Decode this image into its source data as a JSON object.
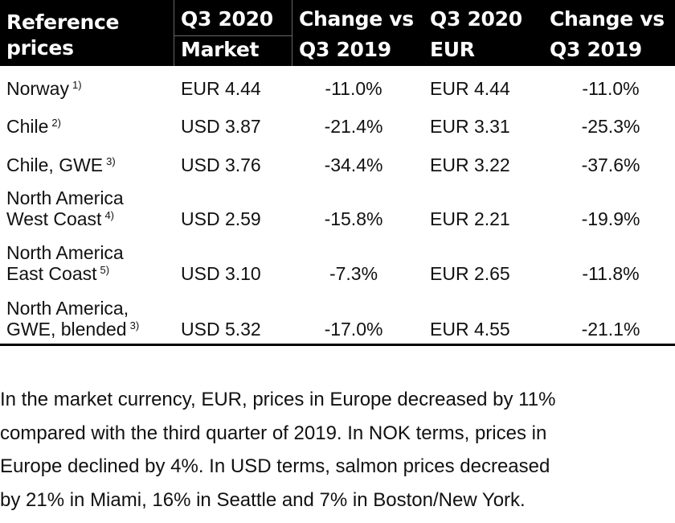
{
  "table": {
    "headers": [
      {
        "line1": "Reference",
        "line2": "prices"
      },
      {
        "line1": "Q3 2020",
        "line2": "Market"
      },
      {
        "line1": "Change vs",
        "line2": "Q3 2019"
      },
      {
        "line1": "Q3 2020",
        "line2": "EUR"
      },
      {
        "line1": "Change vs",
        "line2": "Q3 2019"
      }
    ],
    "rows": [
      {
        "label1": "Norway",
        "label2": "",
        "note": "1)",
        "market": "EUR 4.44",
        "change_market": "-11.0%",
        "eur": "EUR 4.44",
        "change_eur": "-11.0%"
      },
      {
        "label1": "Chile",
        "label2": "",
        "note": "2)",
        "market": "USD 3.87",
        "change_market": "-21.4%",
        "eur": "EUR 3.31",
        "change_eur": "-25.3%"
      },
      {
        "label1": "Chile, GWE",
        "label2": "",
        "note": "3)",
        "market": "USD 3.76",
        "change_market": "-34.4%",
        "eur": "EUR 3.22",
        "change_eur": "-37.6%"
      },
      {
        "label1": "North America",
        "label2": "West Coast",
        "note": "4)",
        "market": "USD 2.59",
        "change_market": "-15.8%",
        "eur": "EUR 2.21",
        "change_eur": "-19.9%"
      },
      {
        "label1": "North America",
        "label2": "East Coast",
        "note": "5)",
        "market": "USD 3.10",
        "change_market": "-7.3%",
        "eur": "EUR 2.65",
        "change_eur": "-11.8%"
      },
      {
        "label1": "North America,",
        "label2": "GWE, blended",
        "note": "3)",
        "market": "USD 5.32",
        "change_market": "-17.0%",
        "eur": "EUR 4.55",
        "change_eur": "-21.1%"
      }
    ]
  },
  "paragraph": {
    "lines": [
      "In the market currency, EUR, prices in Europe decreased by 11%",
      "compared with the third quarter of 2019. In NOK terms, prices in",
      "Europe declined by 4%. In USD terms, salmon prices decreased",
      "by 21% in Miami, 16% in Seattle and 7% in Boston/New York."
    ]
  }
}
